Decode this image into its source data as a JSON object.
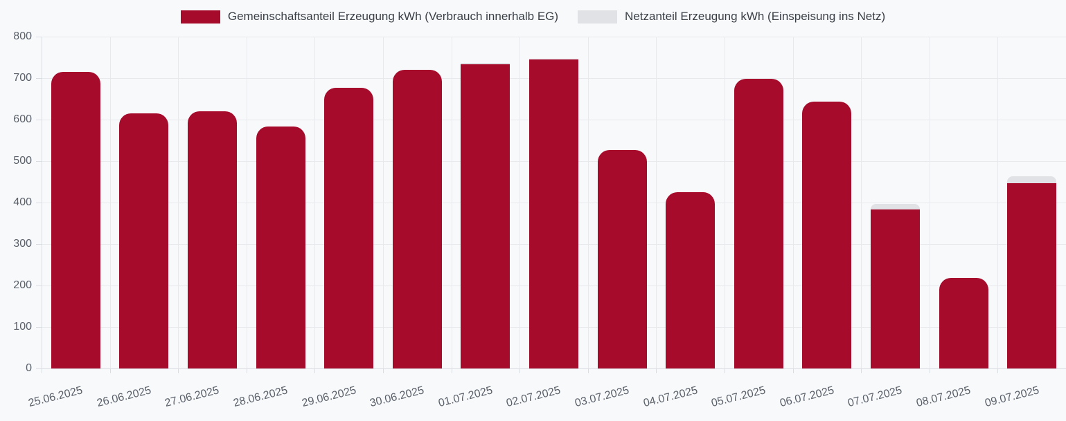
{
  "chart_data": {
    "type": "bar",
    "stacked": true,
    "title": "",
    "xlabel": "",
    "ylabel": "",
    "categories": [
      "25.06.2025",
      "26.06.2025",
      "27.06.2025",
      "28.06.2025",
      "29.06.2025",
      "30.06.2025",
      "01.07.2025",
      "02.07.2025",
      "03.07.2025",
      "04.07.2025",
      "05.07.2025",
      "06.07.2025",
      "07.07.2025",
      "08.07.2025",
      "09.07.2025"
    ],
    "series": [
      {
        "name": "Gemeinschaftsanteil Erzeugung kWh (Verbrauch innerhalb EG)",
        "color": "#A70B2C",
        "values": [
          715,
          615,
          620,
          583,
          676,
          720,
          734,
          745,
          526,
          425,
          698,
          644,
          384,
          218,
          447
        ]
      },
      {
        "name": "Netzanteil Erzeugung kWh (Einspeisung ins Netz)",
        "color": "#E0E2E5",
        "values": [
          0,
          0,
          0,
          0,
          0,
          0,
          2,
          2,
          0,
          0,
          0,
          0,
          13,
          0,
          16
        ]
      }
    ],
    "ylim": [
      0,
      800
    ],
    "yticks": [
      0,
      100,
      200,
      300,
      400,
      500,
      600,
      700,
      800
    ],
    "grid": true,
    "legend_position": "top-center"
  },
  "colors": {
    "background": "#F8F9FB",
    "gridline": "#E7E9ED",
    "axis_line": "#D9DCE1",
    "tick_text": "#5A6069",
    "legend_text": "#3A3F46"
  }
}
